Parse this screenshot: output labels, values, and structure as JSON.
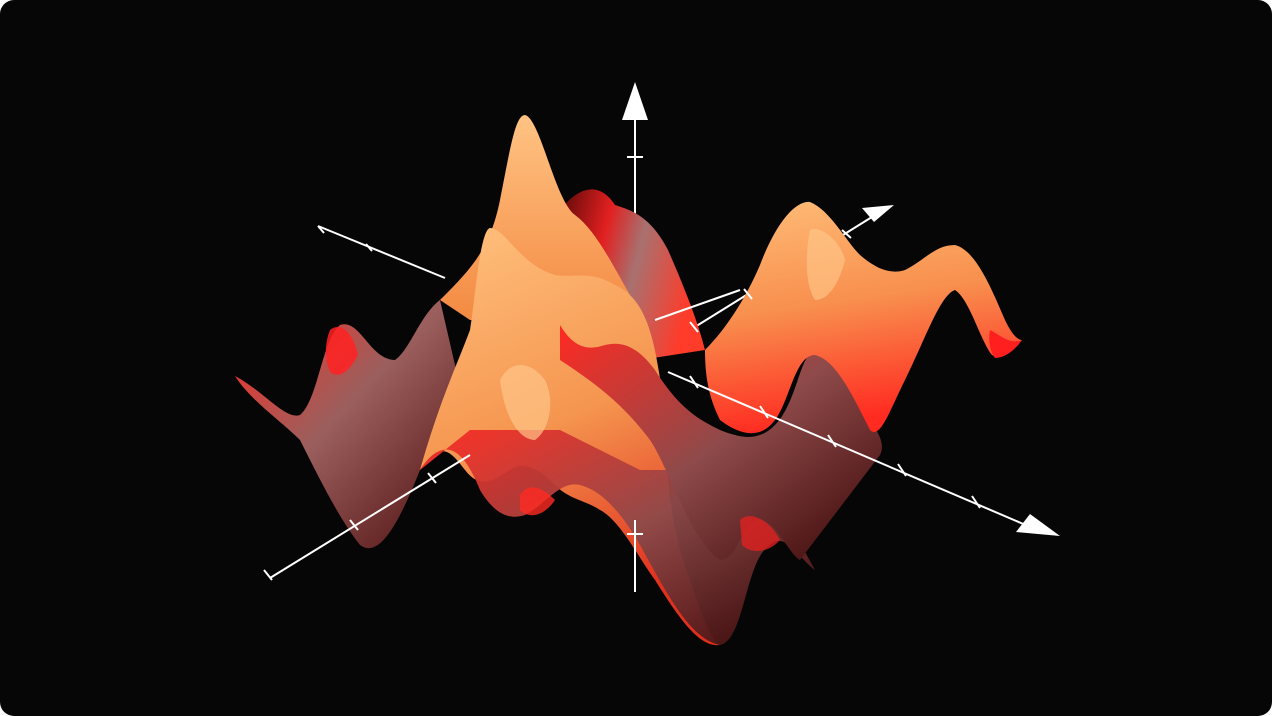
{
  "image": {
    "subject": "3d-surface-plot-illustration",
    "background_color": "#060606",
    "surface_colors": {
      "highlight": "#ffc383",
      "orange": "#f99a55",
      "red": "#ff1f1f",
      "dark_red": "#8a1010",
      "shadow": "#3a0606",
      "muted_pink": "#a8716f"
    },
    "axis_color": "#ffffff",
    "axes": [
      "vertical-axis",
      "left-diagonal-axis",
      "right-diagonal-axis"
    ]
  }
}
